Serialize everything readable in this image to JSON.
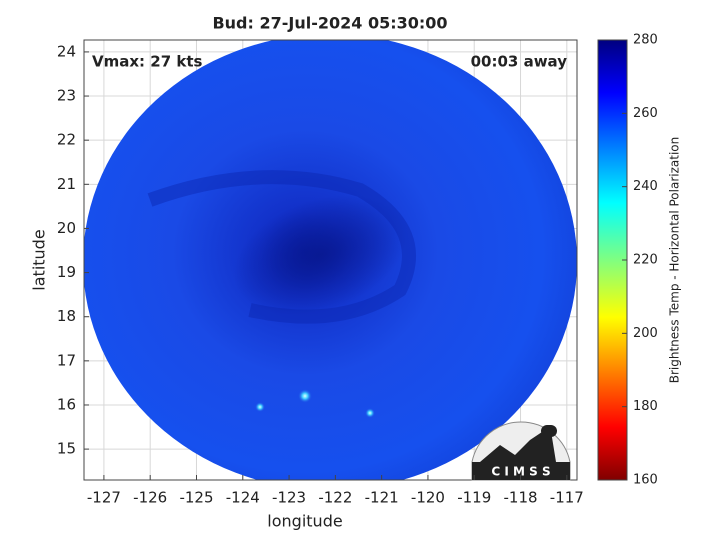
{
  "chart_data": {
    "type": "map",
    "title": "Bud: 27-Jul-2024 05:30:00",
    "xlabel": "longitude",
    "ylabel": "latitude",
    "xlim": [
      -127.43,
      -116.78
    ],
    "xticks": [
      -127,
      -126,
      -125,
      -124,
      -123,
      -122,
      -121,
      -120,
      -119,
      -118,
      -117
    ],
    "ylim": [
      14.3,
      24.27
    ],
    "yticks": [
      15,
      16,
      17,
      18,
      19,
      20,
      21,
      22,
      23,
      24
    ],
    "grid": true,
    "annotations": [
      "Vmax: 27 kts",
      "00:03 away"
    ],
    "logo": "C I M S S",
    "colorbar": {
      "label": "Brightness Temp - Horizontal Polarization",
      "lim": [
        160,
        280
      ],
      "ticks": [
        160,
        180,
        200,
        220,
        240,
        260,
        280
      ]
    }
  }
}
